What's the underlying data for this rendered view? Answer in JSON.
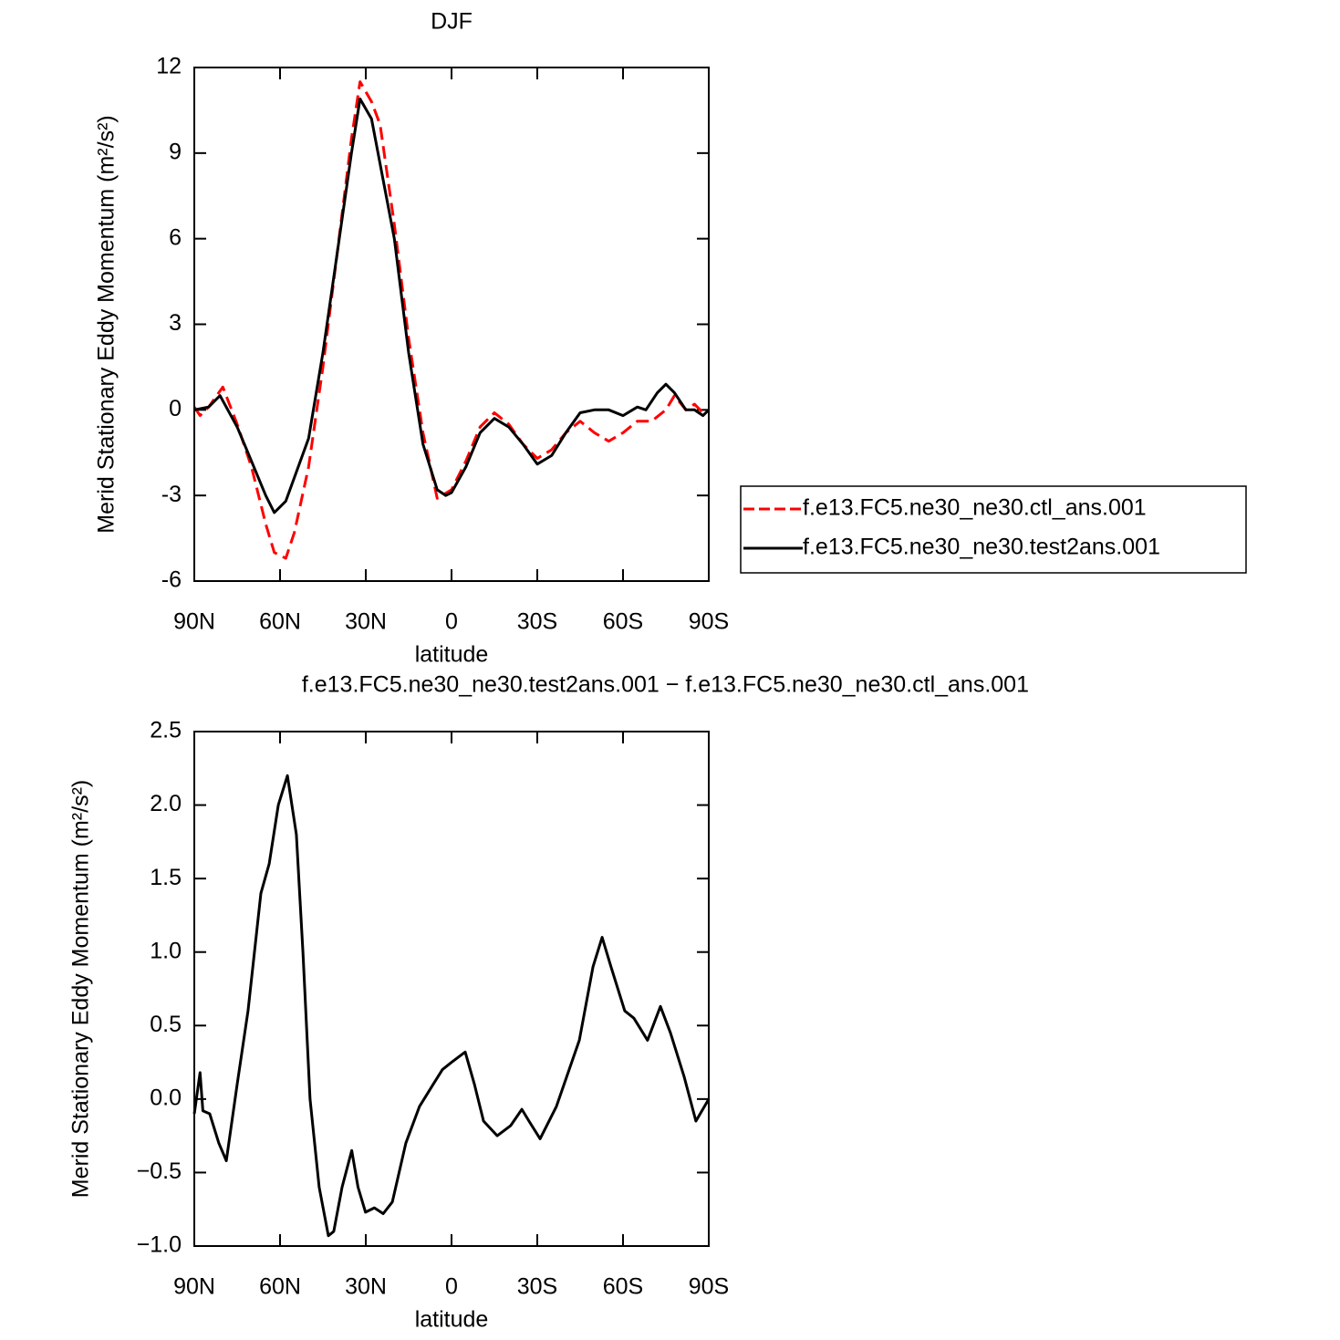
{
  "chart_data": [
    {
      "type": "line",
      "title": "DJF",
      "x_label": "latitude",
      "y_label": "Merid Stationary Eddy Momentum (m²/s²)",
      "xlim": [
        90,
        -90
      ],
      "xticks": [
        {
          "value": 90,
          "label": "90N"
        },
        {
          "value": 60,
          "label": "60N"
        },
        {
          "value": 30,
          "label": "30N"
        },
        0,
        {
          "value": -30,
          "label": "30S"
        },
        {
          "value": -60,
          "label": "60S"
        },
        {
          "value": -90,
          "label": "90S"
        }
      ],
      "ylim": [
        -6,
        12
      ],
      "yticks": [
        -6,
        -3,
        0,
        3,
        6,
        9,
        12
      ],
      "legend": "right",
      "series": [
        {
          "name": "f.e13.FC5.ne30_ne30.ctl_ans.001",
          "color": "#ff0000",
          "dash": true,
          "x": [
            90,
            88,
            85,
            80,
            75,
            70,
            65,
            62,
            58,
            55,
            50,
            45,
            40,
            35,
            32,
            28,
            25,
            20,
            15,
            10,
            5,
            0,
            -5,
            -10,
            -15,
            -20,
            -25,
            -30,
            -35,
            -40,
            -45,
            -50,
            -55,
            -60,
            -65,
            -70,
            -75,
            -78,
            -82,
            -85,
            -88,
            -90
          ],
          "values": [
            0.1,
            -0.2,
            0.1,
            0.8,
            -0.5,
            -2.0,
            -4.0,
            -5.0,
            -5.2,
            -4.3,
            -2.0,
            1.5,
            5.5,
            9.5,
            11.5,
            10.8,
            10.0,
            6.5,
            2.5,
            -0.8,
            -3.1,
            -2.8,
            -1.8,
            -0.6,
            -0.1,
            -0.5,
            -1.2,
            -1.7,
            -1.4,
            -0.8,
            -0.4,
            -0.8,
            -1.1,
            -0.8,
            -0.4,
            -0.4,
            0.0,
            0.5,
            0.0,
            0.2,
            -0.1,
            0.0
          ]
        },
        {
          "name": "f.e13.FC5.ne30_ne30.test2ans.001",
          "color": "#000000",
          "dash": false,
          "x": [
            90,
            85,
            81,
            75,
            70,
            65,
            62,
            58,
            50,
            45,
            40,
            35,
            32,
            28,
            20,
            15,
            10,
            5,
            2,
            0,
            -5,
            -10,
            -15,
            -20,
            -25,
            -30,
            -35,
            -40,
            -45,
            -50,
            -55,
            -60,
            -65,
            -68,
            -72,
            -75,
            -78,
            -82,
            -85,
            -88,
            -90
          ],
          "values": [
            0.0,
            0.1,
            0.5,
            -0.6,
            -1.8,
            -3.0,
            -3.6,
            -3.2,
            -1.0,
            2.0,
            5.5,
            9.0,
            10.9,
            10.2,
            6.0,
            2.0,
            -1.2,
            -2.8,
            -3.0,
            -2.9,
            -2.0,
            -0.8,
            -0.3,
            -0.6,
            -1.2,
            -1.9,
            -1.6,
            -0.8,
            -0.1,
            0.0,
            0.0,
            -0.2,
            0.1,
            0.0,
            0.6,
            0.9,
            0.6,
            0.0,
            0.0,
            -0.2,
            0.0
          ]
        }
      ]
    },
    {
      "type": "line",
      "title": "f.e13.FC5.ne30_ne30.test2ans.001 − f.e13.FC5.ne30_ne30.ctl_ans.001",
      "x_label": "latitude",
      "y_label": "Merid Stationary Eddy Momentum (m²/s²)",
      "xlim": [
        90,
        -90
      ],
      "xticks": [
        {
          "value": 90,
          "label": "90N"
        },
        {
          "value": 60,
          "label": "60N"
        },
        {
          "value": 30,
          "label": "30N"
        },
        0,
        {
          "value": -30,
          "label": "30S"
        },
        {
          "value": -60,
          "label": "60S"
        },
        {
          "value": -90,
          "label": "90S"
        }
      ],
      "ylim": [
        -1,
        2.5
      ],
      "yticks": [
        {
          "value": -1,
          "label": "−1.0"
        },
        {
          "value": -0.5,
          "label": "−0.5"
        },
        {
          "value": 0,
          "label": "0.0"
        },
        0.5,
        {
          "value": 1,
          "label": "1.0"
        },
        1.5,
        {
          "value": 2,
          "label": "2.0"
        },
        2.5
      ],
      "series": [
        {
          "name": null,
          "color": "#000000",
          "dash": false,
          "x": [
            90,
            88,
            87,
            84.6,
            81.4,
            78.8,
            75,
            71.2,
            66.7,
            63.8,
            60.6,
            57.4,
            54.3,
            52,
            49.5,
            46.3,
            43.1,
            41.2,
            38.3,
            34.9,
            32.7,
            30.1,
            27,
            23.9,
            20.7,
            16,
            11.2,
            6.4,
            3.2,
            0,
            -4.8,
            -8,
            -11.2,
            -16,
            -20.7,
            -24.6,
            -27.1,
            -31,
            -36.7,
            -44.7,
            -49.5,
            -52.7,
            -55.8,
            -60.6,
            -63.8,
            -68.6,
            -73.1,
            -76.6,
            -81.4,
            -85.5,
            -90
          ],
          "values": [
            -0.1,
            0.18,
            -0.08,
            -0.1,
            -0.3,
            -0.42,
            0.1,
            0.6,
            1.4,
            1.6,
            2.0,
            2.2,
            1.8,
            1.0,
            0.0,
            -0.6,
            -0.93,
            -0.9,
            -0.6,
            -0.35,
            -0.6,
            -0.77,
            -0.74,
            -0.78,
            -0.7,
            -0.3,
            -0.05,
            0.1,
            0.2,
            0.25,
            0.32,
            0.1,
            -0.15,
            -0.25,
            -0.18,
            -0.07,
            -0.15,
            -0.27,
            -0.05,
            0.4,
            0.9,
            1.1,
            0.9,
            0.6,
            0.55,
            0.4,
            0.63,
            0.45,
            0.15,
            -0.15,
            0.0
          ]
        }
      ]
    }
  ]
}
